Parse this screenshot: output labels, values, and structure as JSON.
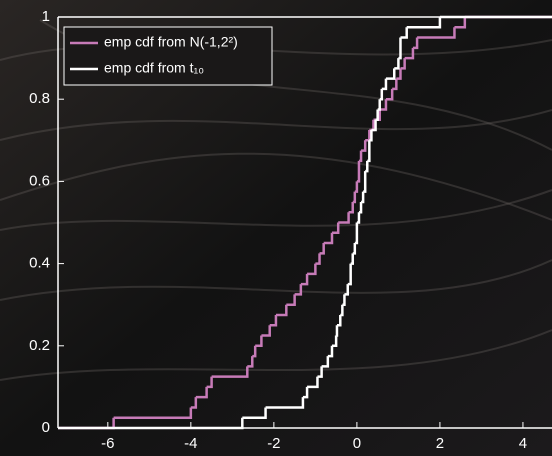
{
  "chart_data": {
    "type": "step",
    "xlim": [
      -7.2,
      4.7
    ],
    "ylim": [
      0,
      1
    ],
    "xticks": [
      -6,
      -4,
      -2,
      0,
      2,
      4
    ],
    "yticks": [
      0,
      0.2,
      0.4,
      0.6,
      0.8,
      1
    ],
    "legend": "upper left",
    "series": [
      {
        "name": "emp cdf from N(-1,2²)",
        "color": "#c77bb8",
        "x": [
          -5.86,
          -4.0,
          -3.88,
          -3.62,
          -3.5,
          -2.64,
          -2.52,
          -2.45,
          -2.3,
          -2.1,
          -1.95,
          -1.7,
          -1.5,
          -1.35,
          -1.2,
          -1.0,
          -0.9,
          -0.8,
          -0.6,
          -0.45,
          -0.2,
          -0.1,
          -0.05,
          0.0,
          0.05,
          0.1,
          0.2,
          0.3,
          0.4,
          0.55,
          0.7,
          0.85,
          0.95,
          1.05,
          1.15,
          1.35,
          1.45,
          2.35,
          2.6
        ],
        "values": [
          0.025,
          0.05,
          0.075,
          0.1,
          0.125,
          0.15,
          0.175,
          0.2,
          0.225,
          0.25,
          0.275,
          0.3,
          0.325,
          0.35,
          0.375,
          0.4,
          0.425,
          0.45,
          0.475,
          0.5,
          0.525,
          0.55,
          0.575,
          0.6,
          0.65,
          0.675,
          0.7,
          0.725,
          0.75,
          0.775,
          0.8,
          0.825,
          0.85,
          0.875,
          0.9,
          0.925,
          0.95,
          0.975,
          1.0
        ]
      },
      {
        "name": "emp cdf from t₁₀",
        "color": "#ffffff",
        "x": [
          -2.76,
          -2.2,
          -1.3,
          -1.2,
          -0.95,
          -0.85,
          -0.7,
          -0.6,
          -0.5,
          -0.48,
          -0.4,
          -0.35,
          -0.3,
          -0.22,
          -0.15,
          -0.1,
          -0.05,
          0.0,
          0.05,
          0.1,
          0.15,
          0.2,
          0.25,
          0.3,
          0.35,
          0.45,
          0.5,
          0.55,
          0.6,
          0.7,
          0.9,
          1.0,
          1.05,
          1.2,
          2.0
        ],
        "values": [
          0.025,
          0.05,
          0.075,
          0.1,
          0.125,
          0.15,
          0.175,
          0.2,
          0.225,
          0.25,
          0.275,
          0.3,
          0.325,
          0.35,
          0.4,
          0.425,
          0.45,
          0.5,
          0.525,
          0.55,
          0.575,
          0.625,
          0.65,
          0.7,
          0.725,
          0.75,
          0.775,
          0.8,
          0.825,
          0.85,
          0.875,
          0.9,
          0.95,
          0.975,
          1.0
        ]
      }
    ]
  }
}
